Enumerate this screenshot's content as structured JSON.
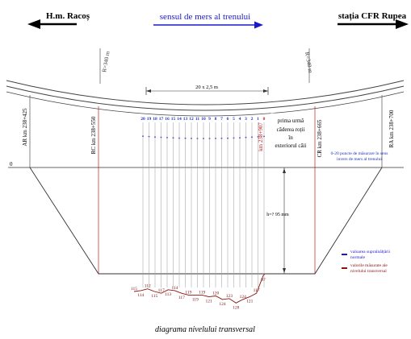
{
  "header": {
    "left_label": "H.m. Racoș",
    "center_label": "sensul de mers al trenului",
    "right_label": "stația CFR Rupea"
  },
  "curve": {
    "radius_left": "R=340 m",
    "radius_right": "R=340 m",
    "span_label": "20 x 2,5 m",
    "first_fall_note": [
      "prima urmă",
      "căderea roții",
      "în",
      "exteriorul căii"
    ]
  },
  "km_markers": {
    "ar": "AR km 238+425",
    "rc": "RC km 238+550",
    "pk": "km 238+907",
    "cr": "CR km 238+665",
    "ra": "RA km 238+700"
  },
  "point_numbers": [
    "20",
    "19",
    "18",
    "17",
    "16",
    "15",
    "14",
    "13",
    "12",
    "11",
    "10",
    "9",
    "8",
    "7",
    "6",
    "5",
    "4",
    "3",
    "2",
    "1",
    "0"
  ],
  "zero_label": "0",
  "height_label": "h=? 95 mm",
  "side_note": [
    "0-20 puncte de măsurare în sens",
    "invers de mers al trenului"
  ],
  "bottom_values": [
    "115",
    "114",
    "112",
    "115",
    "117",
    "113",
    "114",
    "117",
    "119",
    "119",
    "119",
    "121",
    "120",
    "124",
    "123",
    "128",
    "124",
    "121",
    "117",
    "97"
  ],
  "legend": {
    "blue_label": [
      "valoarea supraînălțării",
      "normale"
    ],
    "red_label": [
      "valorile măsurate ale",
      "nivelului transversal"
    ]
  },
  "caption": "diagrama nivelului transversal",
  "colors": {
    "blue": "#1a1acc",
    "red": "#c01818",
    "dark": "#222222",
    "dimblue": "#2030c0"
  }
}
